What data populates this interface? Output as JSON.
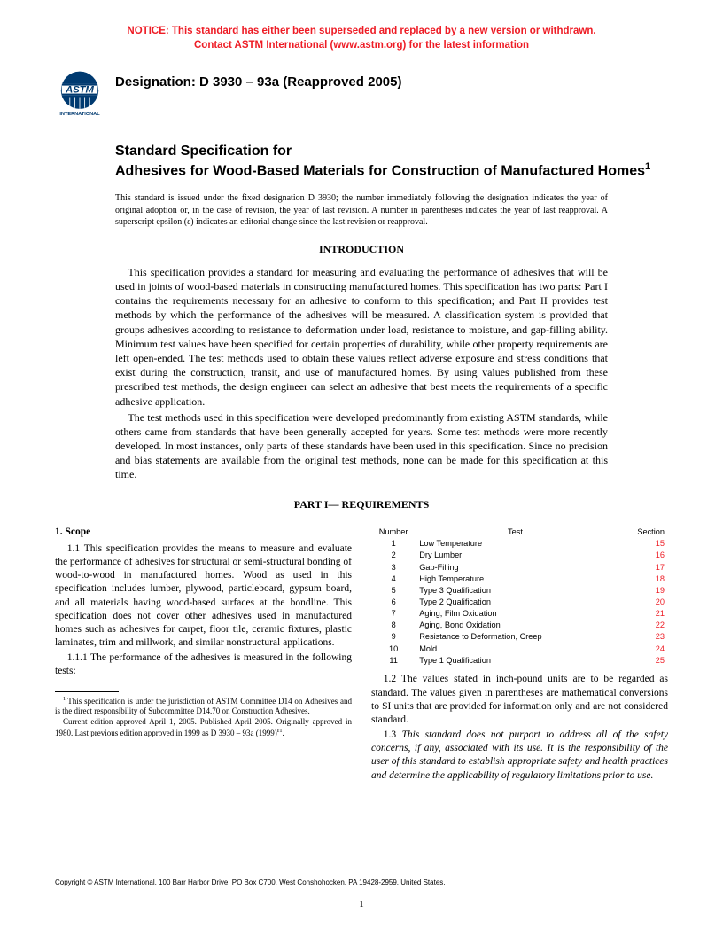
{
  "notice": {
    "line1": "NOTICE: This standard has either been superseded and replaced by a new version or withdrawn.",
    "line2": "Contact ASTM International (www.astm.org) for the latest information"
  },
  "logo": {
    "top_text": "ASTM",
    "bottom_text": "INTERNATIONAL"
  },
  "designation": "Designation: D 3930 – 93a (Reapproved 2005)",
  "title": {
    "pre": "Standard Specification for",
    "main": "Adhesives for Wood-Based Materials for Construction of Manufactured Homes",
    "sup": "1"
  },
  "issued_note": "This standard is issued under the fixed designation D 3930; the number immediately following the designation indicates the year of original adoption or, in the case of revision, the year of last revision. A number in parentheses indicates the year of last reapproval. A superscript epsilon (ε) indicates an editorial change since the last revision or reapproval.",
  "intro_heading": "INTRODUCTION",
  "intro_p1": "This specification provides a standard for measuring and evaluating the performance of adhesives that will be used in joints of wood-based materials in constructing manufactured homes. This specification has two parts: Part I contains the requirements necessary for an adhesive to conform to this specification; and Part II provides test methods by which the performance of the adhesives will be measured. A classification system is provided that groups adhesives according to resistance to deformation under load, resistance to moisture, and gap-filling ability. Minimum test values have been specified for certain properties of durability, while other property requirements are left open-ended. The test methods used to obtain these values reflect adverse exposure and stress conditions that exist during the construction, transit, and use of manufactured homes. By using values published from these prescribed test methods, the design engineer can select an adhesive that best meets the requirements of a specific adhesive application.",
  "intro_p2": "The test methods used in this specification were developed predominantly from existing ASTM standards, while others came from standards that have been generally accepted for years. Some test methods were more recently developed. In most instances, only parts of these standards have been used in this specification. Since no precision and bias statements are available from the original test methods, none can be made for this specification at this time.",
  "part_heading": "PART I— REQUIREMENTS",
  "scope": {
    "head": "1. Scope",
    "p1": "1.1 This specification provides the means to measure and evaluate the performance of adhesives for structural or semi-structural bonding of wood-to-wood in manufactured homes. Wood as used in this specification includes lumber, plywood, particleboard, gypsum board, and all materials having wood-based surfaces at the bondline. This specification does not cover other adhesives used in manufactured homes such as adhesives for carpet, floor tile, ceramic fixtures, plastic laminates, trim and millwork, and similar nonstructural applications.",
    "p2": "1.1.1 The performance of the adhesives is measured in the following tests:"
  },
  "footnotes": {
    "f1": "This specification is under the jurisdiction of ASTM Committee D14 on Adhesives and is the direct responsibility of Subcommittee D14.70 on Construction Adhesives.",
    "f2_a": "Current edition approved April 1, 2005. Published April 2005. Originally approved in 1980. Last previous edition approved in 1999 as D 3930 – 93a (1999)",
    "f2_b": "ε1",
    "f2_c": "."
  },
  "table": {
    "h_num": "Number",
    "h_test": "Test",
    "h_sec": "Section",
    "rows": [
      {
        "n": "1",
        "t": "Low Temperature",
        "s": "15"
      },
      {
        "n": "2",
        "t": "Dry Lumber",
        "s": "16"
      },
      {
        "n": "3",
        "t": "Gap-Filling",
        "s": "17"
      },
      {
        "n": "4",
        "t": "High Temperature",
        "s": "18"
      },
      {
        "n": "5",
        "t": "Type 3 Qualification",
        "s": "19"
      },
      {
        "n": "6",
        "t": "Type 2 Qualification",
        "s": "20"
      },
      {
        "n": "7",
        "t": "Aging, Film Oxidation",
        "s": "21"
      },
      {
        "n": "8",
        "t": "Aging, Bond Oxidation",
        "s": "22"
      },
      {
        "n": "9",
        "t": "Resistance to Deformation, Creep",
        "s": "23"
      },
      {
        "n": "10",
        "t": "Mold",
        "s": "24"
      },
      {
        "n": "11",
        "t": "Type 1 Qualification",
        "s": "25"
      }
    ]
  },
  "p12": "1.2 The values stated in inch-pound units are to be regarded as standard. The values given in parentheses are mathematical conversions to SI units that are provided for information only and are not considered standard.",
  "p13_a": "1.3 ",
  "p13_b": "This standard does not purport to address all of the safety concerns, if any, associated with its use. It is the responsibility of the user of this standard to establish appropriate safety and health practices and determine the applicability of regulatory limitations prior to use.",
  "copyright": "Copyright © ASTM International, 100 Barr Harbor Drive, PO Box C700, West Conshohocken, PA 19428-2959, United States.",
  "page_number": "1",
  "colors": {
    "red": "#ee1c25",
    "text": "#000000",
    "bg": "#ffffff"
  }
}
